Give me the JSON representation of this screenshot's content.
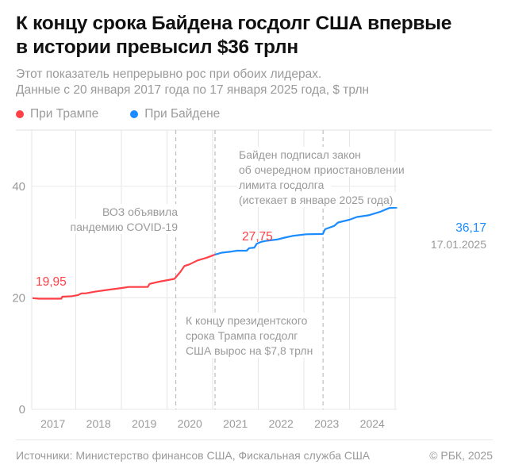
{
  "title_lines": [
    "К концу срока Байдена госдолг США впервые",
    "в истории превысил $36 трлн"
  ],
  "subtitle_lines": [
    "Этот показатель непрерывно рос при обоих лидерах.",
    "Данные с 20 января 2017 года по 17 января 2025 года, $ трлн"
  ],
  "legend": [
    {
      "label": "При Трампе",
      "color": "#ff4046"
    },
    {
      "label": "При Байдене",
      "color": "#1a8cff"
    }
  ],
  "chart_data": {
    "type": "line",
    "xlabel": "",
    "ylabel": "",
    "ylim": [
      0,
      50
    ],
    "y_ticks": [
      0,
      20,
      40
    ],
    "y_tick_labels": [
      "0",
      "20",
      "40"
    ],
    "x_ticks": [
      "2017",
      "2018",
      "2019",
      "2020",
      "2021",
      "2022",
      "2023",
      "2024"
    ],
    "grid": true,
    "series": [
      {
        "name": "При Трампе",
        "color": "#ff4046",
        "points": [
          [
            "2017-01-20",
            19.95
          ],
          [
            "2017-03-15",
            19.85
          ],
          [
            "2017-09-07",
            19.85
          ],
          [
            "2017-09-15",
            20.2
          ],
          [
            "2017-12-01",
            20.3
          ],
          [
            "2018-01-20",
            20.5
          ],
          [
            "2018-02-15",
            20.8
          ],
          [
            "2018-03-20",
            20.8
          ],
          [
            "2018-06-01",
            21.1
          ],
          [
            "2018-09-01",
            21.4
          ],
          [
            "2018-12-31",
            21.75
          ],
          [
            "2019-03-01",
            21.95
          ],
          [
            "2019-07-31",
            21.95
          ],
          [
            "2019-08-15",
            22.5
          ],
          [
            "2019-11-01",
            22.9
          ],
          [
            "2020-03-01",
            23.4
          ],
          [
            "2020-04-15",
            24.6
          ],
          [
            "2020-05-20",
            25.7
          ],
          [
            "2020-06-30",
            26.0
          ],
          [
            "2020-09-01",
            26.7
          ],
          [
            "2020-11-15",
            27.2
          ],
          [
            "2021-01-20",
            27.75
          ]
        ],
        "end_label": "27,75",
        "start_label": "19,95"
      },
      {
        "name": "При Байдене",
        "color": "#1a8cff",
        "points": [
          [
            "2021-01-20",
            27.75
          ],
          [
            "2021-03-15",
            28.1
          ],
          [
            "2021-06-01",
            28.3
          ],
          [
            "2021-07-15",
            28.45
          ],
          [
            "2021-10-01",
            28.45
          ],
          [
            "2021-10-20",
            28.9
          ],
          [
            "2021-12-01",
            29.0
          ],
          [
            "2021-12-20",
            29.7
          ],
          [
            "2022-01-20",
            30.0
          ],
          [
            "2022-03-01",
            30.2
          ],
          [
            "2022-06-01",
            30.45
          ],
          [
            "2022-08-01",
            30.8
          ],
          [
            "2022-10-01",
            31.1
          ],
          [
            "2023-01-19",
            31.4
          ],
          [
            "2023-06-02",
            31.45
          ],
          [
            "2023-06-20",
            32.3
          ],
          [
            "2023-09-01",
            32.9
          ],
          [
            "2023-10-01",
            33.5
          ],
          [
            "2023-12-31",
            34.0
          ],
          [
            "2024-03-01",
            34.5
          ],
          [
            "2024-06-01",
            34.8
          ],
          [
            "2024-09-01",
            35.4
          ],
          [
            "2024-11-15",
            36.1
          ],
          [
            "2025-01-17",
            36.17
          ]
        ],
        "end_label": "36,17",
        "end_date_label": "17.01.2025"
      }
    ],
    "events": [
      {
        "date": "2020-03-11",
        "label_lines": [
          "ВОЗ объявила",
          "пандемию COVID-19"
        ]
      },
      {
        "date": "2021-01-20",
        "label_lines": [
          "К концу президентского",
          "срока Трампа госдолг",
          "США вырос на $7,8 трлн"
        ]
      },
      {
        "date": "2023-06-03",
        "label_lines": [
          "Байден подписал закон",
          "об очередном приостановлении",
          "лимита госдолга",
          "(истекает в январе 2025 года)"
        ]
      }
    ]
  },
  "footer": {
    "sources": "Источники: Министерство финансов США, Фискальная служба США",
    "copyright": "© РБК, 2025"
  }
}
